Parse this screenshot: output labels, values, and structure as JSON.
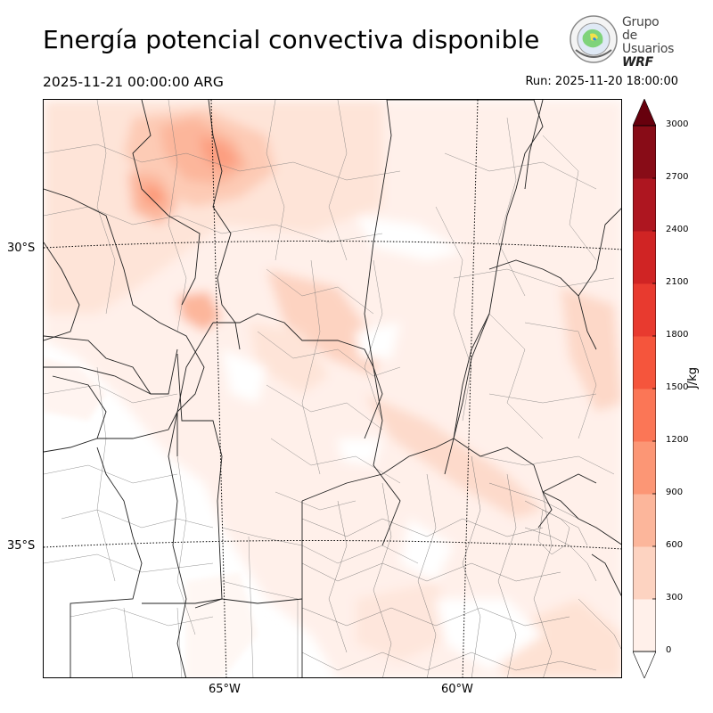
{
  "title": "Energía potencial convectiva disponible",
  "valid_time": "2025-11-21 00:00:00 ARG",
  "run_time": "Run: 2025-11-20 18:00:00",
  "logo": {
    "line1": "Grupo de",
    "line2": "Usuarios",
    "line3": "WRF"
  },
  "lat_labels": [
    "30°S",
    "35°S"
  ],
  "lon_labels": [
    "65°W",
    "60°W"
  ],
  "colorbar": {
    "label": "J/kg",
    "ticks": [
      "0",
      "300",
      "600",
      "900",
      "1200",
      "1500",
      "1800",
      "2100",
      "2400",
      "2700",
      "3000"
    ],
    "colors": [
      "#fff0ea",
      "#fdd3c1",
      "#fcb69b",
      "#fc9675",
      "#fb7656",
      "#f5553c",
      "#e83a2f",
      "#d02424",
      "#ae1620",
      "#880c17"
    ],
    "over_color": "#67000d",
    "under_color": "#ffffff"
  }
}
